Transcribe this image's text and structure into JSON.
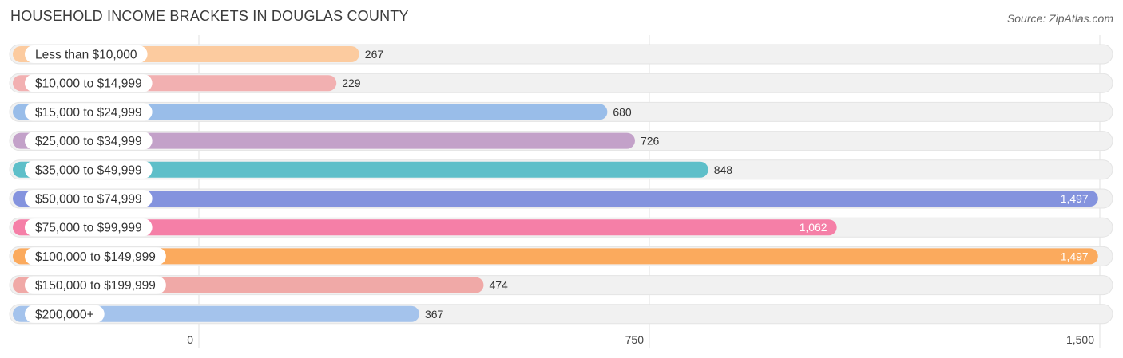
{
  "header": {
    "title": "HOUSEHOLD INCOME BRACKETS IN DOUGLAS COUNTY",
    "source": "Source: ZipAtlas.com"
  },
  "chart_data": {
    "type": "bar",
    "orientation": "horizontal",
    "title": "HOUSEHOLD INCOME BRACKETS IN DOUGLAS COUNTY",
    "categories": [
      "Less than $10,000",
      "$10,000 to $14,999",
      "$15,000 to $24,999",
      "$25,000 to $34,999",
      "$35,000 to $49,999",
      "$50,000 to $74,999",
      "$75,000 to $99,999",
      "$100,000 to $149,999",
      "$150,000 to $199,999",
      "$200,000+"
    ],
    "values": [
      267,
      229,
      680,
      726,
      848,
      1497,
      1062,
      1497,
      474,
      367
    ],
    "value_labels": [
      "267",
      "229",
      "680",
      "726",
      "848",
      "1,497",
      "1,062",
      "1,497",
      "474",
      "367"
    ],
    "colors": [
      "#fccb9f",
      "#f2b0b1",
      "#99bde9",
      "#c3a1c9",
      "#5ebfc9",
      "#8493de",
      "#f57fa7",
      "#fbaa5d",
      "#f0a9a7",
      "#a4c3ec"
    ],
    "xlim": [
      0,
      1500
    ],
    "xticks": [
      0,
      750,
      1500
    ],
    "xtick_labels": [
      "0",
      "750",
      "1,500"
    ],
    "grid": true
  }
}
